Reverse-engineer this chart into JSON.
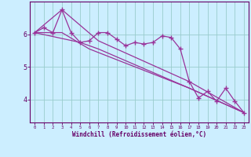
{
  "bg_color": "#cceeff",
  "line_color": "#993399",
  "grid_color": "#99cccc",
  "axis_color": "#660066",
  "xlabel": "Windchill (Refroidissement éolien,°C)",
  "xlabel_color": "#660066",
  "tick_color": "#660066",
  "xlim": [
    -0.5,
    23.5
  ],
  "ylim": [
    3.3,
    7.0
  ],
  "yticks": [
    4,
    5,
    6
  ],
  "xticks": [
    0,
    1,
    2,
    3,
    4,
    5,
    6,
    7,
    8,
    9,
    10,
    11,
    12,
    13,
    14,
    15,
    16,
    17,
    18,
    19,
    20,
    21,
    22,
    23
  ],
  "series1_x": [
    0,
    1,
    2,
    3,
    4,
    5,
    6,
    7,
    8,
    9,
    10,
    11,
    12,
    13,
    14,
    15,
    16,
    17,
    18,
    19,
    20,
    21,
    22,
    23
  ],
  "series1_y": [
    6.05,
    6.2,
    6.05,
    6.75,
    6.05,
    5.75,
    5.8,
    6.05,
    6.05,
    5.85,
    5.65,
    5.75,
    5.7,
    5.75,
    5.95,
    5.9,
    5.55,
    4.55,
    4.05,
    4.25,
    3.95,
    4.35,
    3.95,
    3.6
  ],
  "series2_x": [
    0,
    3,
    7,
    17,
    23
  ],
  "series2_y": [
    6.05,
    6.75,
    5.8,
    4.55,
    3.6
  ],
  "series3_x": [
    0,
    5,
    7,
    17,
    23
  ],
  "series3_y": [
    6.05,
    5.75,
    5.55,
    4.35,
    3.6
  ],
  "series4_x": [
    0,
    3,
    6,
    17,
    23
  ],
  "series4_y": [
    6.05,
    6.05,
    5.55,
    4.35,
    3.6
  ],
  "marker": "+",
  "markersize": 4,
  "markeredgewidth": 1.0,
  "linewidth": 0.9
}
